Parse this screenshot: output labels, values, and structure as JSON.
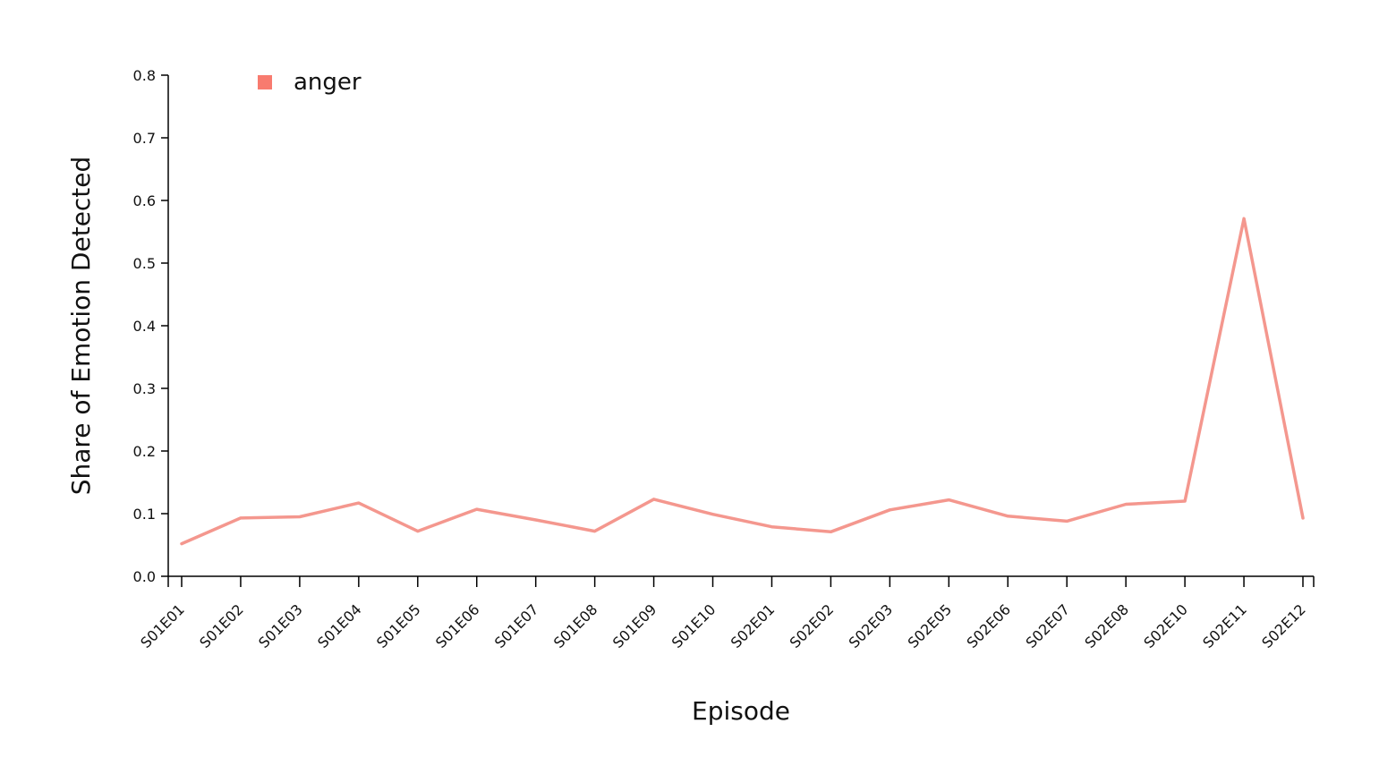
{
  "chart_data": {
    "type": "line",
    "title": "",
    "xlabel": "Episode",
    "ylabel": "Share of Emotion Detected",
    "categories": [
      "S01E01",
      "S01E02",
      "S01E03",
      "S01E04",
      "S01E05",
      "S01E06",
      "S01E07",
      "S01E08",
      "S01E09",
      "S01E10",
      "S02E01",
      "S02E02",
      "S02E03",
      "S02E05",
      "S02E06",
      "S02E07",
      "S02E08",
      "S02E10",
      "S02E11",
      "S02E12"
    ],
    "series": [
      {
        "name": "anger",
        "color": "#f4978e",
        "legend_color": "#f87b6f",
        "values": [
          0.052,
          0.093,
          0.095,
          0.117,
          0.072,
          0.107,
          0.09,
          0.072,
          0.123,
          0.099,
          0.079,
          0.071,
          0.106,
          0.122,
          0.096,
          0.088,
          0.115,
          0.12,
          0.571,
          0.093
        ]
      }
    ],
    "ylim": [
      0,
      0.8
    ],
    "yticks": [
      "0.0",
      "0.1",
      "0.2",
      "0.3",
      "0.4",
      "0.5",
      "0.6",
      "0.7",
      "0.8"
    ],
    "grid": false,
    "legend_position": "top-left"
  }
}
